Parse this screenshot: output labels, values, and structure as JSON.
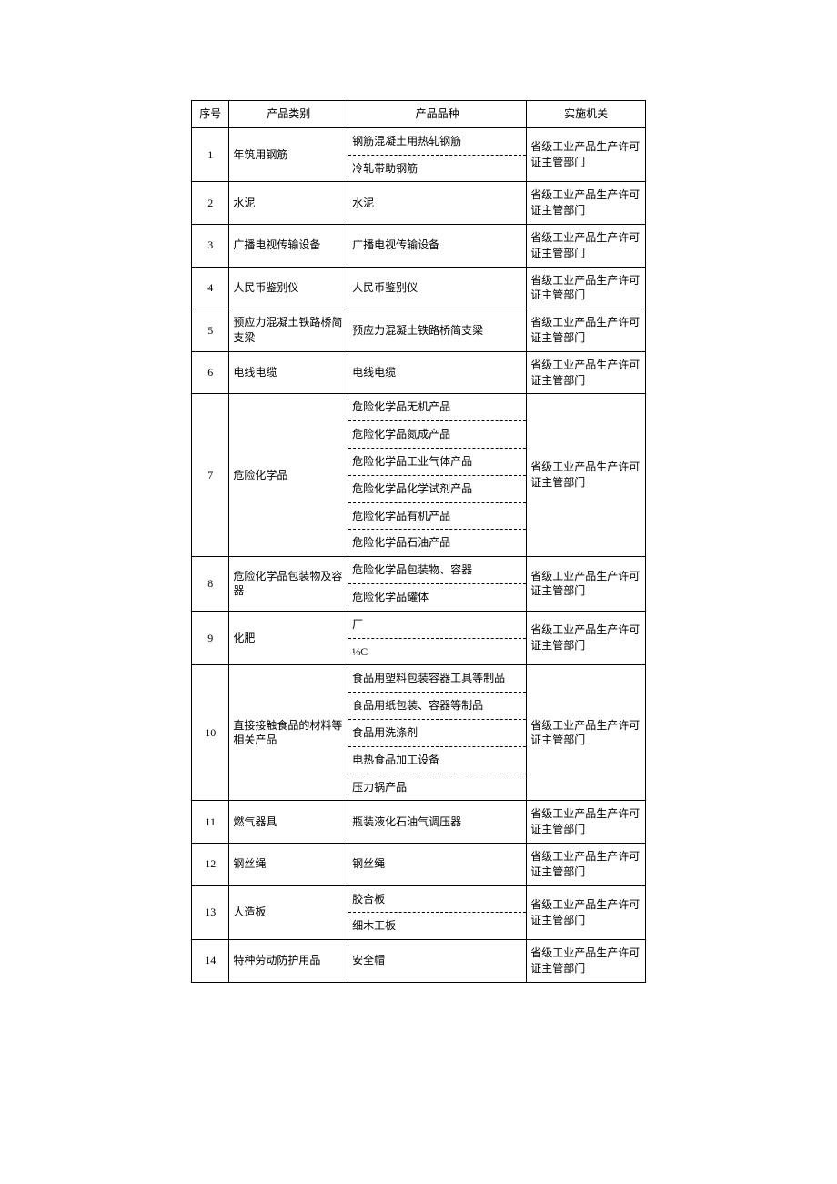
{
  "table": {
    "headers": [
      "序号",
      "产品类别",
      "产品品种",
      "实施机关"
    ],
    "rows": [
      {
        "num": "1",
        "category": "年筑用钢筋",
        "varieties": [
          "钢筋混凝土用热轧钢筋",
          "冷轧带助钢筋"
        ],
        "authority": "省级工业产品生产许可证主管部门"
      },
      {
        "num": "2",
        "category": "水泥",
        "varieties": [
          "水泥"
        ],
        "authority": "省级工业产品生产许可证主管部门"
      },
      {
        "num": "3",
        "category": "广播电视传输设备",
        "varieties": [
          "广播电视传输设备"
        ],
        "authority": "省级工业产品生产许可证主管部门"
      },
      {
        "num": "4",
        "category": "人民币鉴别仪",
        "varieties": [
          "人民币鉴别仪"
        ],
        "authority": "省级工业产品生产许可证主管部门"
      },
      {
        "num": "5",
        "category": "预应力混凝土铁路桥简支梁",
        "varieties": [
          "预应力混凝土铁路桥简支梁"
        ],
        "authority": "省级工业产品生产许可证主管部门"
      },
      {
        "num": "6",
        "category": "电线电缆",
        "varieties": [
          "电线电缆"
        ],
        "authority": "省级工业产品生产许可证主管部门"
      },
      {
        "num": "7",
        "category": "危险化学品",
        "varieties": [
          "危险化学品无机产品",
          "危险化学品氮成产品",
          "危险化学品工业气体产品",
          "危险化学品化学试剂产品",
          "危险化学品有机产品",
          "危险化学品石油产品"
        ],
        "authority": "省级工业产品生产许可证主管部门"
      },
      {
        "num": "8",
        "category": "危险化学品包装物及容器",
        "varieties": [
          "危险化学品包装物、容器",
          "危险化学品罐体"
        ],
        "authority": "省级工业产品生产许可证主管部门"
      },
      {
        "num": "9",
        "category": "化肥",
        "varieties": [
          "厂",
          "⅛C"
        ],
        "authority": "省级工业产品生产许可证主管部门"
      },
      {
        "num": "10",
        "category": "直接接触食品的材料等相关产品",
        "varieties": [
          "食品用塑料包装容器工具等制品",
          "食品用纸包装、容器等制品",
          "食品用洗涤剂",
          "电热食品加工设备",
          "压力锅产品"
        ],
        "authority": "省级工业产品生产许可证主管部门"
      },
      {
        "num": "11",
        "category": "燃气器具",
        "varieties": [
          "瓶装液化石油气调压器"
        ],
        "authority": "省级工业产品生产许可证主管部门"
      },
      {
        "num": "12",
        "category": "钢丝绳",
        "varieties": [
          "钢丝绳"
        ],
        "authority": "省级工业产品生产许可证主管部门"
      },
      {
        "num": "13",
        "category": "人造板",
        "varieties": [
          "胶合板",
          "细木工板"
        ],
        "authority": "省级工业产品生产许可证主管部门"
      },
      {
        "num": "14",
        "category": "特种劳动防护用品",
        "varieties": [
          "安全帽"
        ],
        "authority": "省级工业产品生产许可证主管部门"
      }
    ]
  }
}
